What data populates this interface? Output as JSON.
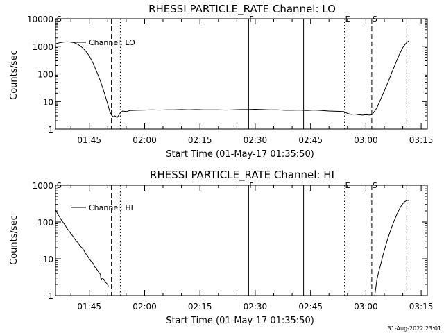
{
  "footer_stamp": "31-Aug-2022 23:01",
  "chart_data": [
    {
      "type": "line",
      "title": "RHESSI PARTICLE_RATE Channel: LO",
      "xlabel": "Start Time (01-May-17 01:35:50)",
      "ylabel": "Counts/sec",
      "yscale": "log",
      "xlim_min": [
        35.833,
        136.667
      ],
      "ylim": [
        1,
        10000
      ],
      "x_ticks": [
        {
          "m": 45,
          "label": "01:45"
        },
        {
          "m": 60,
          "label": "02:00"
        },
        {
          "m": 75,
          "label": "02:15"
        },
        {
          "m": 90,
          "label": "02:30"
        },
        {
          "m": 105,
          "label": "02:45"
        },
        {
          "m": 120,
          "label": "03:00"
        },
        {
          "m": 135,
          "label": "03:15"
        }
      ],
      "y_ticks": [
        {
          "v": 1,
          "label": "1"
        },
        {
          "v": 10,
          "label": "10"
        },
        {
          "v": 100,
          "label": "100"
        },
        {
          "v": 1000,
          "label": "1000"
        },
        {
          "v": 10000,
          "label": "10000"
        }
      ],
      "legend": "Channel: LO",
      "grid": false,
      "markers": [
        {
          "m": 36,
          "style": "none",
          "label": "S"
        },
        {
          "m": 51,
          "style": "dash",
          "label": ""
        },
        {
          "m": 53.4,
          "style": "dot",
          "label": ""
        },
        {
          "m": 88.2,
          "style": "solid",
          "label": "F"
        },
        {
          "m": 103.1,
          "style": "solid",
          "label": ""
        },
        {
          "m": 114.2,
          "style": "dot",
          "label": "E"
        },
        {
          "m": 121.6,
          "style": "dash",
          "label": "S"
        },
        {
          "m": 131.1,
          "style": "dashdot",
          "label": ""
        }
      ],
      "series": [
        {
          "values_min_rate": [
            [
              36,
              1250
            ],
            [
              37,
              1350
            ],
            [
              38,
              1420
            ],
            [
              39,
              1450
            ],
            [
              40,
              1420
            ],
            [
              41,
              1330
            ],
            [
              42,
              1150
            ],
            [
              43,
              920
            ],
            [
              44,
              680
            ],
            [
              45,
              450
            ],
            [
              46,
              250
            ],
            [
              47,
              120
            ],
            [
              48,
              55
            ],
            [
              49,
              22
            ],
            [
              50,
              8
            ],
            [
              50.5,
              4.5
            ],
            [
              51,
              3.2
            ],
            [
              51.5,
              2.8
            ],
            [
              52,
              3.0
            ],
            [
              52.5,
              2.6
            ],
            [
              53,
              3.2
            ],
            [
              53.5,
              4.0
            ],
            [
              54,
              4.5
            ],
            [
              55,
              4.3
            ],
            [
              56,
              4.7
            ],
            [
              58,
              4.8
            ],
            [
              60,
              4.9
            ],
            [
              62,
              5.0
            ],
            [
              64,
              4.9
            ],
            [
              66,
              5.0
            ],
            [
              68,
              5.0
            ],
            [
              70,
              5.1
            ],
            [
              72,
              5.0
            ],
            [
              74,
              5.1
            ],
            [
              76,
              5.0
            ],
            [
              78,
              5.0
            ],
            [
              80,
              5.0
            ],
            [
              82,
              4.9
            ],
            [
              84,
              5.0
            ],
            [
              86,
              5.1
            ],
            [
              88,
              5.1
            ],
            [
              90,
              5.2
            ],
            [
              92,
              5.1
            ],
            [
              94,
              5.0
            ],
            [
              96,
              5.0
            ],
            [
              98,
              4.8
            ],
            [
              100,
              4.8
            ],
            [
              102,
              4.9
            ],
            [
              104,
              4.7
            ],
            [
              106,
              4.9
            ],
            [
              108,
              4.7
            ],
            [
              110,
              4.5
            ],
            [
              112,
              4.4
            ],
            [
              114,
              4.3
            ],
            [
              115,
              3.7
            ],
            [
              116,
              3.4
            ],
            [
              117,
              3.5
            ],
            [
              118,
              3.3
            ],
            [
              119,
              3.2
            ],
            [
              120,
              3.3
            ],
            [
              121,
              3.2
            ],
            [
              121.6,
              3.3
            ],
            [
              122,
              3.8
            ],
            [
              123,
              6
            ],
            [
              124,
              12
            ],
            [
              125,
              24
            ],
            [
              126,
              50
            ],
            [
              127,
              110
            ],
            [
              128,
              230
            ],
            [
              129,
              480
            ],
            [
              130,
              900
            ],
            [
              131,
              1350
            ],
            [
              131.6,
              1550
            ]
          ]
        }
      ]
    },
    {
      "type": "line",
      "title": "RHESSI PARTICLE_RATE Channel: HI",
      "xlabel": "Start Time (01-May-17 01:35:50)",
      "ylabel": "Counts/sec",
      "yscale": "log",
      "xlim_min": [
        35.833,
        136.667
      ],
      "ylim": [
        1,
        1000
      ],
      "x_ticks": [
        {
          "m": 45,
          "label": "01:45"
        },
        {
          "m": 60,
          "label": "02:00"
        },
        {
          "m": 75,
          "label": "02:15"
        },
        {
          "m": 90,
          "label": "02:30"
        },
        {
          "m": 105,
          "label": "02:45"
        },
        {
          "m": 120,
          "label": "03:00"
        },
        {
          "m": 135,
          "label": "03:15"
        }
      ],
      "y_ticks": [
        {
          "v": 1,
          "label": "1"
        },
        {
          "v": 10,
          "label": "10"
        },
        {
          "v": 100,
          "label": "100"
        },
        {
          "v": 1000,
          "label": "1000"
        }
      ],
      "legend": "Channel: HI",
      "grid": false,
      "markers": [
        {
          "m": 36,
          "style": "none",
          "label": "S"
        },
        {
          "m": 51,
          "style": "dash",
          "label": ""
        },
        {
          "m": 53.4,
          "style": "dot",
          "label": ""
        },
        {
          "m": 88.2,
          "style": "solid",
          "label": "F"
        },
        {
          "m": 103.1,
          "style": "solid",
          "label": ""
        },
        {
          "m": 114.2,
          "style": "dot",
          "label": "E"
        },
        {
          "m": 121.6,
          "style": "dash",
          "label": "S"
        },
        {
          "m": 131.1,
          "style": "dashdot",
          "label": ""
        }
      ],
      "series": [
        {
          "values_min_rate": [
            [
              35.9,
              210
            ],
            [
              36.5,
              160
            ],
            [
              37,
              135
            ],
            [
              37.5,
              110
            ],
            [
              38,
              95
            ],
            [
              38.5,
              80
            ],
            [
              39,
              66
            ],
            [
              39.5,
              57
            ],
            [
              40,
              48
            ],
            [
              40.5,
              42
            ],
            [
              41,
              35
            ],
            [
              41.5,
              30
            ],
            [
              42,
              27
            ],
            [
              42.5,
              22
            ],
            [
              43,
              20
            ],
            [
              43.5,
              17
            ],
            [
              44,
              14
            ],
            [
              44.5,
              12
            ],
            [
              45,
              10
            ],
            [
              45.5,
              8.5
            ],
            [
              46,
              7.6
            ],
            [
              46.5,
              6.0
            ],
            [
              47,
              5.2
            ],
            [
              47.5,
              4.4
            ],
            [
              48,
              3.8
            ],
            [
              48.2,
              2.6
            ],
            [
              48.5,
              3.0
            ],
            [
              49,
              2.7
            ],
            [
              49.4,
              2.3
            ],
            [
              49.8,
              2.1
            ],
            [
              50.2,
              1.8
            ]
          ]
        },
        {
          "values_min_rate": [
            [
              122.4,
              1.0
            ],
            [
              123,
              2.8
            ],
            [
              123.5,
              4.5
            ],
            [
              124,
              7
            ],
            [
              124.5,
              11
            ],
            [
              125,
              17
            ],
            [
              125.5,
              25
            ],
            [
              126,
              37
            ],
            [
              126.5,
              52
            ],
            [
              127,
              72
            ],
            [
              127.5,
              98
            ],
            [
              128,
              130
            ],
            [
              128.5,
              170
            ],
            [
              129,
              215
            ],
            [
              129.5,
              265
            ],
            [
              130,
              315
            ],
            [
              130.5,
              355
            ],
            [
              131,
              380
            ],
            [
              131.5,
              390
            ],
            [
              131.7,
              370
            ]
          ]
        }
      ]
    }
  ]
}
